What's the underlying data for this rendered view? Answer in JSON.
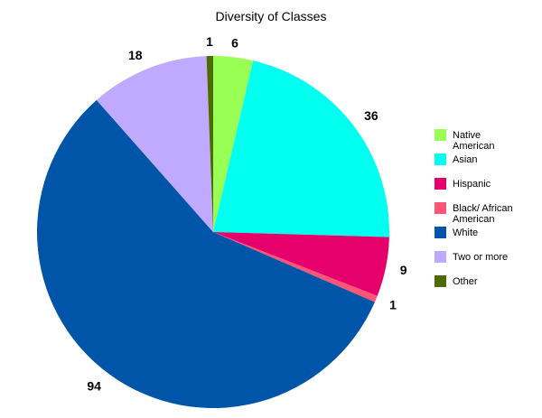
{
  "chart_data": {
    "type": "pie",
    "title": "Diversity of Classes",
    "legend_position": "right",
    "slices": [
      {
        "name": "Native American",
        "label_lines": [
          "Native",
          "American"
        ],
        "value": 6,
        "color": "#99ff55"
      },
      {
        "name": "Asian",
        "label_lines": [
          "Asian"
        ],
        "value": 36,
        "color": "#00ffee"
      },
      {
        "name": "Hispanic",
        "label_lines": [
          "Hispanic"
        ],
        "value": 9,
        "color": "#e6006b"
      },
      {
        "name": "Black/ African American",
        "label_lines": [
          "Black/ African",
          "American"
        ],
        "value": 1,
        "color": "#ff5577"
      },
      {
        "name": "White",
        "label_lines": [
          "White"
        ],
        "value": 94,
        "color": "#0055a8"
      },
      {
        "name": "Two or more",
        "label_lines": [
          "Two or more"
        ],
        "value": 18,
        "color": "#c0aaff"
      },
      {
        "name": "Other",
        "label_lines": [
          "Other"
        ],
        "value": 1,
        "color": "#4d6b00"
      }
    ]
  }
}
